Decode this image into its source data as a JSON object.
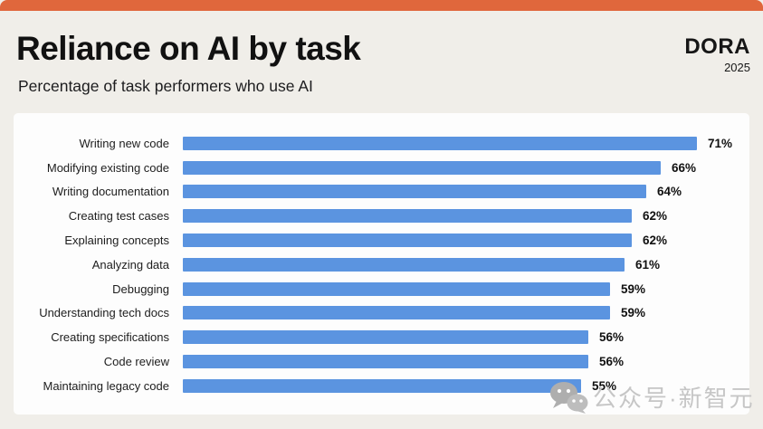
{
  "header": {
    "title": "Reliance on AI by task",
    "subtitle": "Percentage of task performers who use AI",
    "logo": "DORA",
    "year": "2025"
  },
  "chart_data": {
    "type": "bar",
    "orientation": "horizontal",
    "title": "Reliance on AI by task",
    "subtitle": "Percentage of task performers who use AI",
    "categories": [
      "Writing new code",
      "Modifying existing code",
      "Writing documentation",
      "Creating test cases",
      "Explaining concepts",
      "Analyzing data",
      "Debugging",
      "Understanding tech docs",
      "Creating specifications",
      "Code review",
      "Maintaining legacy code"
    ],
    "values": [
      71,
      66,
      64,
      62,
      62,
      61,
      59,
      59,
      56,
      56,
      55
    ],
    "unit": "%",
    "value_range": [
      0,
      100
    ],
    "axis_visible": false,
    "grid": false,
    "legend": false,
    "bar_color": "#5b94e0"
  },
  "colors": {
    "accent_orange": "#e0673c",
    "bar_blue": "#5b94e0",
    "background": "#f0eee9",
    "panel": "#fdfdfd",
    "text": "#1c1c1e",
    "watermark_gray": "#c6c6c6"
  },
  "watermark": {
    "icon": "wechat-icon",
    "text": "公众号·新智元"
  }
}
